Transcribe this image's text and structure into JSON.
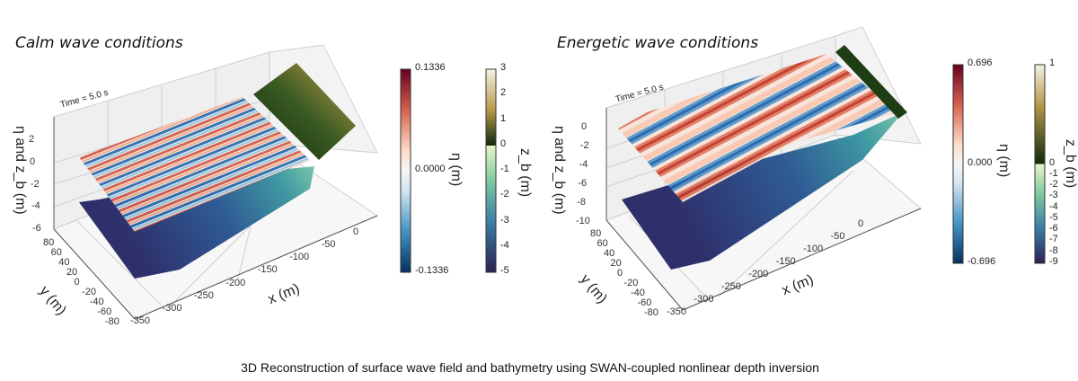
{
  "caption": "3D Reconstruction of surface wave field and bathymetry using SWAN-coupled nonlinear depth inversion",
  "chart_data": [
    {
      "type": "surface3d",
      "title": "Calm wave conditions",
      "annotation": "Time = 5.0 s",
      "xlabel": "x (m)",
      "ylabel": "y (m)",
      "zlabel": "η and z_b (m)",
      "x_ticks": [
        "-350",
        "-300",
        "-250",
        "-200",
        "-150",
        "-100",
        "-50",
        "0"
      ],
      "y_ticks": [
        "80",
        "60",
        "40",
        "20",
        "0",
        "-20",
        "-40",
        "-60",
        "-80"
      ],
      "z_ticks": [
        "2",
        "0",
        "-2",
        "-4",
        "-6"
      ],
      "xlim": [
        -350,
        0
      ],
      "ylim": [
        -80,
        80
      ],
      "zlim": [
        -6,
        3
      ],
      "colorbars": [
        {
          "label": "η (m)",
          "colormap": "RdBu_r",
          "ticks": [
            "0.1336",
            "0.0000",
            "-0.1336"
          ],
          "range": [
            -0.1336,
            0.1336
          ]
        },
        {
          "label": "z_b (m)",
          "colormap": "gist_earth-like",
          "ticks": [
            "3",
            "2",
            "1",
            "0",
            "-1",
            "-2",
            "-3",
            "-4",
            "-5"
          ],
          "range": [
            -5,
            3
          ]
        }
      ]
    },
    {
      "type": "surface3d",
      "title": "Energetic wave conditions",
      "annotation": "Time = 5.0 s",
      "xlabel": "x (m)",
      "ylabel": "y (m)",
      "zlabel": "η and z_b (m)",
      "x_ticks": [
        "-350",
        "-300",
        "-250",
        "-200",
        "-150",
        "-100",
        "-50",
        "0"
      ],
      "y_ticks": [
        "80",
        "60",
        "40",
        "20",
        "0",
        "-20",
        "-40",
        "-60",
        "-80"
      ],
      "z_ticks": [
        "0",
        "-2",
        "-4",
        "-6",
        "-8",
        "-10"
      ],
      "xlim": [
        -350,
        0
      ],
      "ylim": [
        -80,
        80
      ],
      "zlim": [
        -10,
        1
      ],
      "colorbars": [
        {
          "label": "η (m)",
          "colormap": "RdBu_r",
          "ticks": [
            "0.696",
            "0.000",
            "-0.696"
          ],
          "range": [
            -0.696,
            0.696
          ]
        },
        {
          "label": "z_b (m)",
          "colormap": "gist_earth-like",
          "ticks": [
            "1",
            "0",
            "-1",
            "-2",
            "-3",
            "-4",
            "-5",
            "-6",
            "-7",
            "-8",
            "-9"
          ],
          "range": [
            -9,
            1
          ]
        }
      ]
    }
  ],
  "colors": {
    "wave_pos": "#b2182b",
    "wave_neg": "#2166ac",
    "deep": "#2e2f6b",
    "shallow": "#8fd3a8",
    "land_dark": "#1c3a12",
    "land_light": "#c9a24a"
  }
}
